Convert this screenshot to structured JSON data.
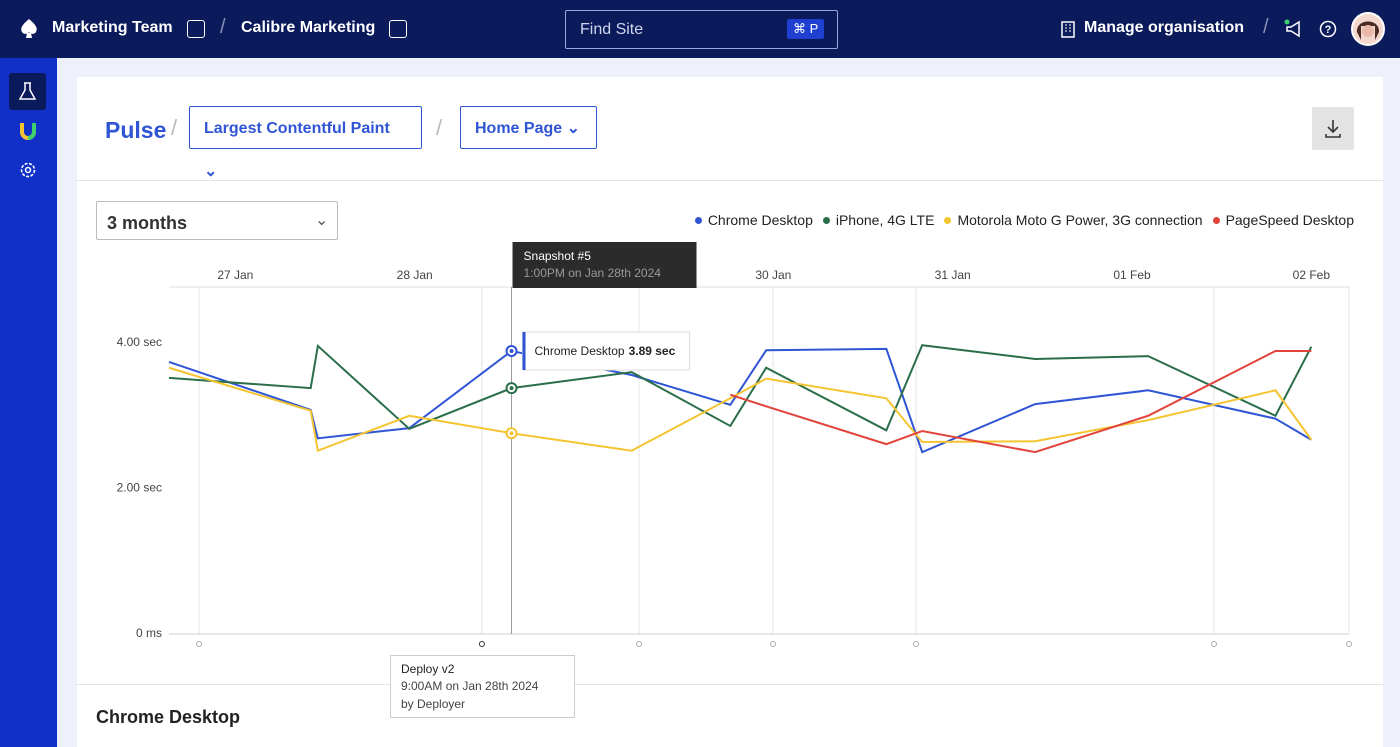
{
  "nav": {
    "team": "Marketing Team",
    "site": "Calibre Marketing",
    "search": "Find Site",
    "shortcut": "⌘ P",
    "manage": "Manage organisation"
  },
  "header": {
    "title": "Pulse",
    "metric": "Largest Contentful Paint",
    "page": "Home Page"
  },
  "range": "3 months",
  "section": "Chrome Desktop",
  "chart_data": {
    "type": "line",
    "x": [
      26.63,
      27.42,
      27.46,
      27.97,
      28.54,
      29.21,
      29.76,
      29.96,
      30.63,
      30.83,
      31.46,
      32.09,
      32.8,
      33.0
    ],
    "xlim": [
      26.63,
      33.21
    ],
    "xticks": [
      {
        "value": 27,
        "label": "27 Jan"
      },
      {
        "value": 28,
        "label": "28 Jan"
      },
      {
        "value": 30,
        "label": "30 Jan"
      },
      {
        "value": 31,
        "label": "31 Jan"
      },
      {
        "value": 32,
        "label": "01 Feb"
      },
      {
        "value": 33,
        "label": "02 Feb"
      }
    ],
    "ylim": [
      0,
      4.77
    ],
    "yticks": [
      {
        "value": 0,
        "label": "0 ms"
      },
      {
        "value": 2,
        "label": "2.00 sec"
      },
      {
        "value": 4,
        "label": "4.00 sec"
      }
    ],
    "grid": false,
    "legend": "top-right",
    "series": [
      {
        "name": "Chrome Desktop",
        "color": "#2f55d4",
        "values": [
          3.74,
          3.08,
          2.69,
          2.83,
          3.89,
          3.56,
          3.15,
          3.9,
          3.92,
          2.5,
          3.16,
          3.35,
          2.96,
          2.67
        ],
        "value_labels": [
          null,
          null,
          null,
          null,
          "3.89 sec",
          null,
          null,
          null,
          null,
          null,
          null,
          null,
          null,
          null
        ]
      },
      {
        "name": "iPhone, 4G LTE",
        "color": "#2b6e4a",
        "values": [
          3.52,
          3.38,
          3.96,
          2.82,
          3.38,
          3.6,
          2.86,
          3.66,
          2.8,
          3.97,
          3.78,
          3.82,
          3.0,
          3.95
        ]
      },
      {
        "name": "Motorola Moto G Power, 3G connection",
        "color": "#f5c431",
        "values": [
          3.66,
          3.07,
          2.52,
          3.0,
          2.76,
          2.52,
          3.24,
          3.51,
          3.24,
          2.64,
          2.65,
          2.94,
          3.35,
          2.67
        ]
      },
      {
        "name": "PageSpeed Desktop",
        "color": "#e0443a",
        "values": [
          null,
          null,
          null,
          null,
          null,
          null,
          3.29,
          3.13,
          2.61,
          2.79,
          2.5,
          3.0,
          3.89,
          3.89
        ]
      }
    ],
    "tooltip": {
      "title": "Snapshot #5",
      "time": "1:00PM on Jan 28th 2024"
    },
    "annotation": {
      "x": 28.375,
      "title": "Deploy v2",
      "time": "9:00AM on Jan 28th 2024",
      "author": "by Deployer"
    }
  }
}
